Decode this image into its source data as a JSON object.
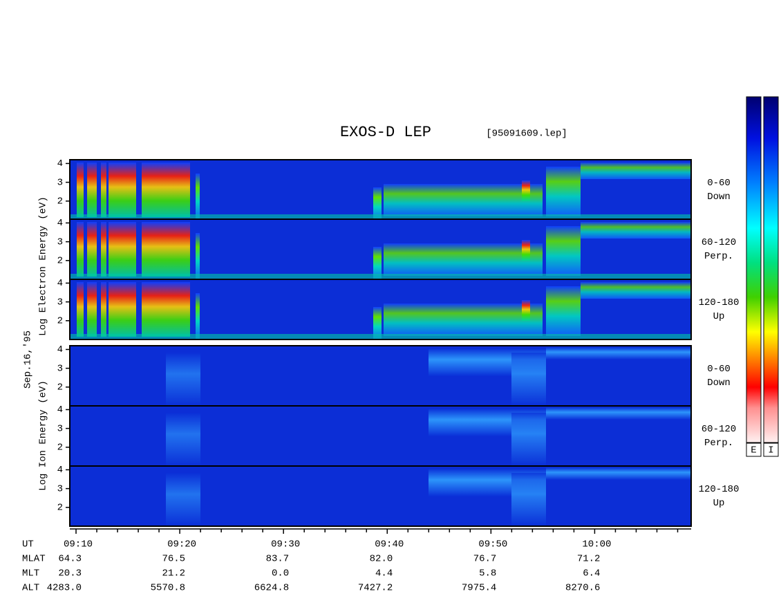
{
  "chart_data": {
    "type": "spectrogram",
    "title": "EXOS-D LEP",
    "file": "[95091609.lep]",
    "date": "Sep.16,'95",
    "groups": [
      {
        "label": "Log Electron Energy (eV)"
      },
      {
        "label": "Log Ion Energy (eV)"
      }
    ],
    "panels": [
      {
        "group": 0,
        "pitch": "0-60",
        "direction": "Down"
      },
      {
        "group": 0,
        "pitch": "60-120",
        "direction": "Perp."
      },
      {
        "group": 0,
        "pitch": "120-180",
        "direction": "Up"
      },
      {
        "group": 1,
        "pitch": "0-60",
        "direction": "Down"
      },
      {
        "group": 1,
        "pitch": "60-120",
        "direction": "Perp."
      },
      {
        "group": 1,
        "pitch": "120-180",
        "direction": "Up"
      }
    ],
    "ylim": [
      1,
      4.2
    ],
    "yticks": [
      2,
      3,
      4
    ],
    "xlim": [
      549.4,
      609.3
    ],
    "xticks": [
      {
        "value": 550,
        "label": "09:10"
      },
      {
        "value": 560,
        "label": "09:20"
      },
      {
        "value": 570,
        "label": "09:30"
      },
      {
        "value": 580,
        "label": "09:40"
      },
      {
        "value": 590,
        "label": "09:50"
      },
      {
        "value": 600,
        "label": "10:00"
      }
    ],
    "minor_xticks": [
      552,
      554,
      556,
      558,
      562,
      564,
      566,
      568,
      572,
      574,
      576,
      578,
      582,
      584,
      586,
      588,
      592,
      594,
      596,
      598,
      602,
      604,
      606,
      608
    ],
    "x_label": "UT",
    "ephemeris": [
      {
        "name": "MLAT",
        "values": [
          "64.3",
          "76.5",
          "83.7",
          "82.0",
          "76.7",
          "71.2"
        ]
      },
      {
        "name": "MLT",
        "values": [
          "20.3",
          "21.2",
          "0.0",
          "4.4",
          "5.8",
          "6.4"
        ]
      },
      {
        "name": "ALT",
        "values": [
          "4283.0",
          "5570.8",
          "6624.8",
          "7427.2",
          "7975.4",
          "8270.6"
        ]
      }
    ],
    "colorbar_labels": [
      "E",
      "I"
    ]
  }
}
